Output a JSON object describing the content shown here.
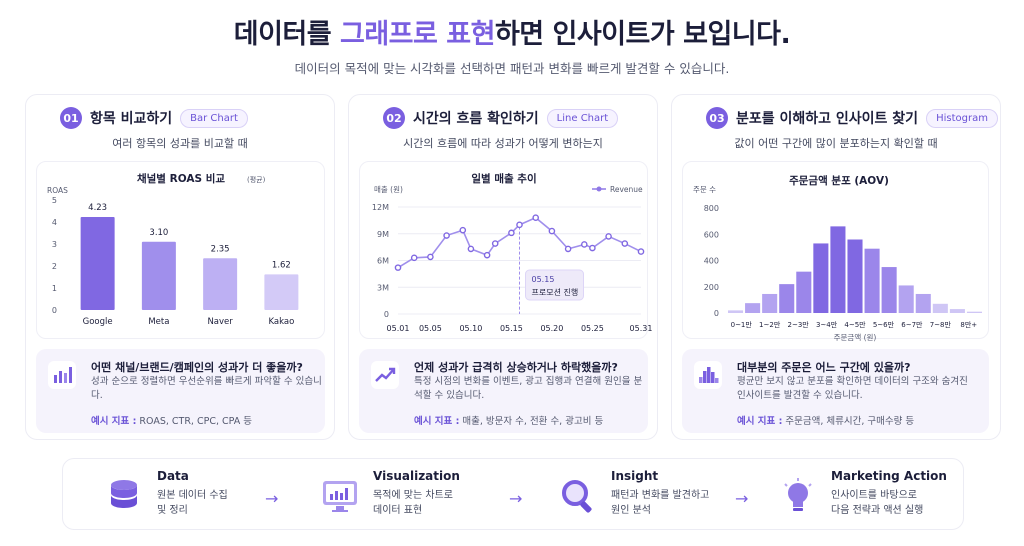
{
  "header": {
    "title_pre": "데이터를 ",
    "title_highlight": "그래프로 표현",
    "title_post": "하면 인사이트가 보입니다.",
    "subtitle": "데이터의 목적에 맞는 시각화를 선택하면 패턴과 변화를 빠르게 발견할 수 있습니다."
  },
  "colors": {
    "accent": "#7a5fe0",
    "light": "#cfc6f5",
    "bg": "#f5f3fc"
  },
  "cards": [
    {
      "num": "01",
      "title": "항목 비교하기",
      "pill": "Bar Chart",
      "desc": "여러 항목의 성과를 비교할 때",
      "q": "어떤 채널/브랜드/캠페인의 성과가 더 좋을까?",
      "a": "성과 순으로 정렬하면 우선순위를 빠르게 파악할 수 있습니다.",
      "ex_label": "예시 지표 :",
      "ex": "ROAS, CTR, CPC, CPA 등",
      "icon": "bar-chart-icon"
    },
    {
      "num": "02",
      "title": "시간의 흐름 확인하기",
      "pill": "Line Chart",
      "desc": "시간의 흐름에 따라 성과가 어떻게 변하는지",
      "q": "언제 성과가 급격히 상승하거나 하락했을까?",
      "a": "특정 시점의 변화를 이벤트, 광고 집행과 연결해 원인을 분석할 수 있습니다.",
      "ex_label": "예시 지표 :",
      "ex": "매출, 방문자 수, 전환 수, 광고비 등",
      "icon": "line-chart-icon"
    },
    {
      "num": "03",
      "title": "분포를 이해하고 인사이트 찾기",
      "pill": "Histogram",
      "desc": "값이 어떤 구간에 많이 분포하는지 확인할 때",
      "q": "대부분의 주문은 어느 구간에 있을까?",
      "a": "평균만 보지 않고 분포를 확인하면 데이터의 구조와 숨겨진 인사이트를 발견할 수 있습니다.",
      "ex_label": "예시 지표 :",
      "ex": "주문금액, 체류시간, 구매수량 등",
      "icon": "histogram-icon"
    }
  ],
  "chart_data": [
    {
      "type": "bar",
      "title": "채널별 ROAS 비교",
      "title_note": "(평균)",
      "ylabel": "ROAS",
      "categories": [
        "Google",
        "Meta",
        "Naver",
        "Kakao"
      ],
      "values": [
        4.23,
        3.1,
        2.35,
        1.62
      ],
      "value_labels": [
        "4.23",
        "3.10",
        "2.35",
        "1.62"
      ],
      "yticks": [
        "0",
        "1",
        "2",
        "3",
        "4",
        "5"
      ],
      "ylim": [
        0,
        5
      ]
    },
    {
      "type": "line",
      "title": "일별 매출 추이",
      "ylabel": "매출 (원)",
      "legend": "Revenue",
      "x": [
        "05.01",
        "05.03",
        "05.05",
        "05.07",
        "05.09",
        "05.10",
        "05.12",
        "05.13",
        "05.15",
        "05.16",
        "05.18",
        "05.20",
        "05.22",
        "05.24",
        "05.25",
        "05.27",
        "05.29",
        "05.31"
      ],
      "values": [
        5.2,
        6.3,
        6.4,
        8.8,
        9.4,
        7.3,
        6.6,
        7.9,
        9.1,
        10.0,
        10.8,
        9.3,
        7.3,
        7.8,
        7.4,
        8.7,
        7.9,
        7.0
      ],
      "xticks": [
        "05.01",
        "05.05",
        "05.10",
        "05.15",
        "05.20",
        "05.25",
        "05.31"
      ],
      "yticks": [
        "0",
        "3M",
        "6M",
        "9M",
        "12M"
      ],
      "ylim": [
        0,
        12
      ],
      "annotation": {
        "x": "05.16",
        "date": "05.15",
        "text": "프로모션 진행"
      }
    },
    {
      "type": "bar",
      "subtype": "histogram",
      "title": "주문금액 분포 (AOV)",
      "ylabel": "주문 수",
      "xlabel": "주문금액 (원)",
      "values": [
        20,
        75,
        145,
        220,
        315,
        530,
        660,
        560,
        490,
        350,
        210,
        145,
        70,
        30,
        10
      ],
      "xticks": [
        "0~1만",
        "1~2만",
        "2~3만",
        "3~4만",
        "4~5만",
        "5~6만",
        "6~7만",
        "7~8만",
        "8만+"
      ],
      "yticks": [
        "0",
        "200",
        "400",
        "600",
        "800"
      ],
      "ylim": [
        0,
        800
      ]
    }
  ],
  "flow": [
    {
      "title": "Data",
      "desc": "원본 데이터 수집\n및 정리",
      "icon": "database-icon"
    },
    {
      "title": "Visualization",
      "desc": "목적에 맞는 차트로\n데이터 표현",
      "icon": "monitor-chart-icon"
    },
    {
      "title": "Insight",
      "desc": "패턴과 변화를 발견하고\n원인 분석",
      "icon": "magnifier-icon"
    },
    {
      "title": "Marketing Action",
      "desc": "인사이트를 바탕으로\n다음 전략과 액션 실행",
      "icon": "lightbulb-icon"
    }
  ]
}
